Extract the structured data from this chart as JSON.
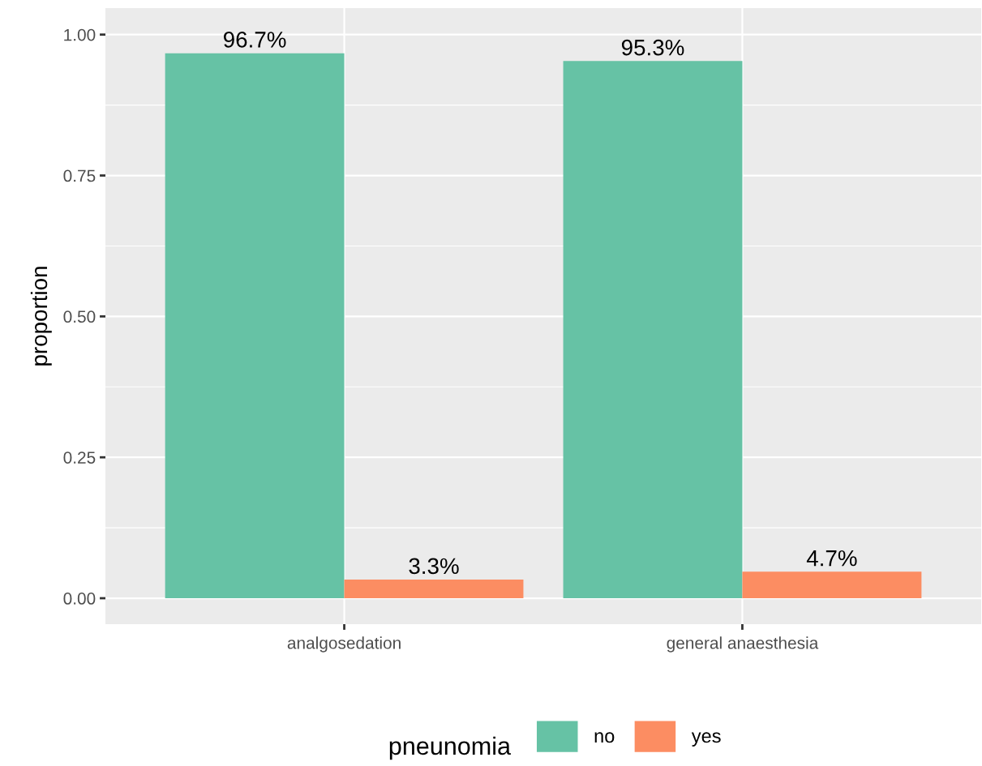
{
  "chart_data": {
    "type": "bar",
    "ylabel": "proportion",
    "legend_title": "pneunomia",
    "categories": [
      "analgosedation",
      "general anaesthesia"
    ],
    "series": [
      {
        "name": "no",
        "color": "#66c2a5",
        "values": [
          0.967,
          0.953
        ],
        "value_labels": [
          "96.7%",
          "95.3%"
        ]
      },
      {
        "name": "yes",
        "color": "#fc8d62",
        "values": [
          0.033,
          0.047
        ],
        "value_labels": [
          "3.3%",
          "4.7%"
        ]
      }
    ],
    "ylim": [
      -0.046,
      1.047
    ],
    "yticks": [
      {
        "value": 0,
        "label": "0.00"
      },
      {
        "value": 0.25,
        "label": "0.25"
      },
      {
        "value": 0.5,
        "label": "0.50"
      },
      {
        "value": 0.75,
        "label": "0.75"
      },
      {
        "value": 1,
        "label": "1.00"
      }
    ],
    "grid": true,
    "legend": "bottom"
  }
}
